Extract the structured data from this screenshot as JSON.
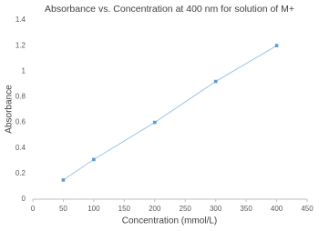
{
  "chart_data": {
    "type": "line",
    "title": "Absorbance vs. Concentration at 400 nm for solution of M+",
    "x_label": "Concentration (mmol/L)",
    "y_label": "Absorbance",
    "x": [
      50,
      100,
      200,
      300,
      400
    ],
    "series": [
      {
        "color": "#5b9bd5",
        "values": [
          0.15,
          0.31,
          0.6,
          0.92,
          1.2
        ]
      }
    ],
    "xlim": [
      0,
      450
    ],
    "xticks": [
      0,
      50,
      100,
      150,
      200,
      250,
      300,
      350,
      400,
      450
    ],
    "ylim": [
      0,
      1.4
    ],
    "yticks": [
      0,
      0.2,
      0.4,
      0.6,
      0.8,
      1,
      1.2,
      1.4
    ],
    "grid": false
  }
}
